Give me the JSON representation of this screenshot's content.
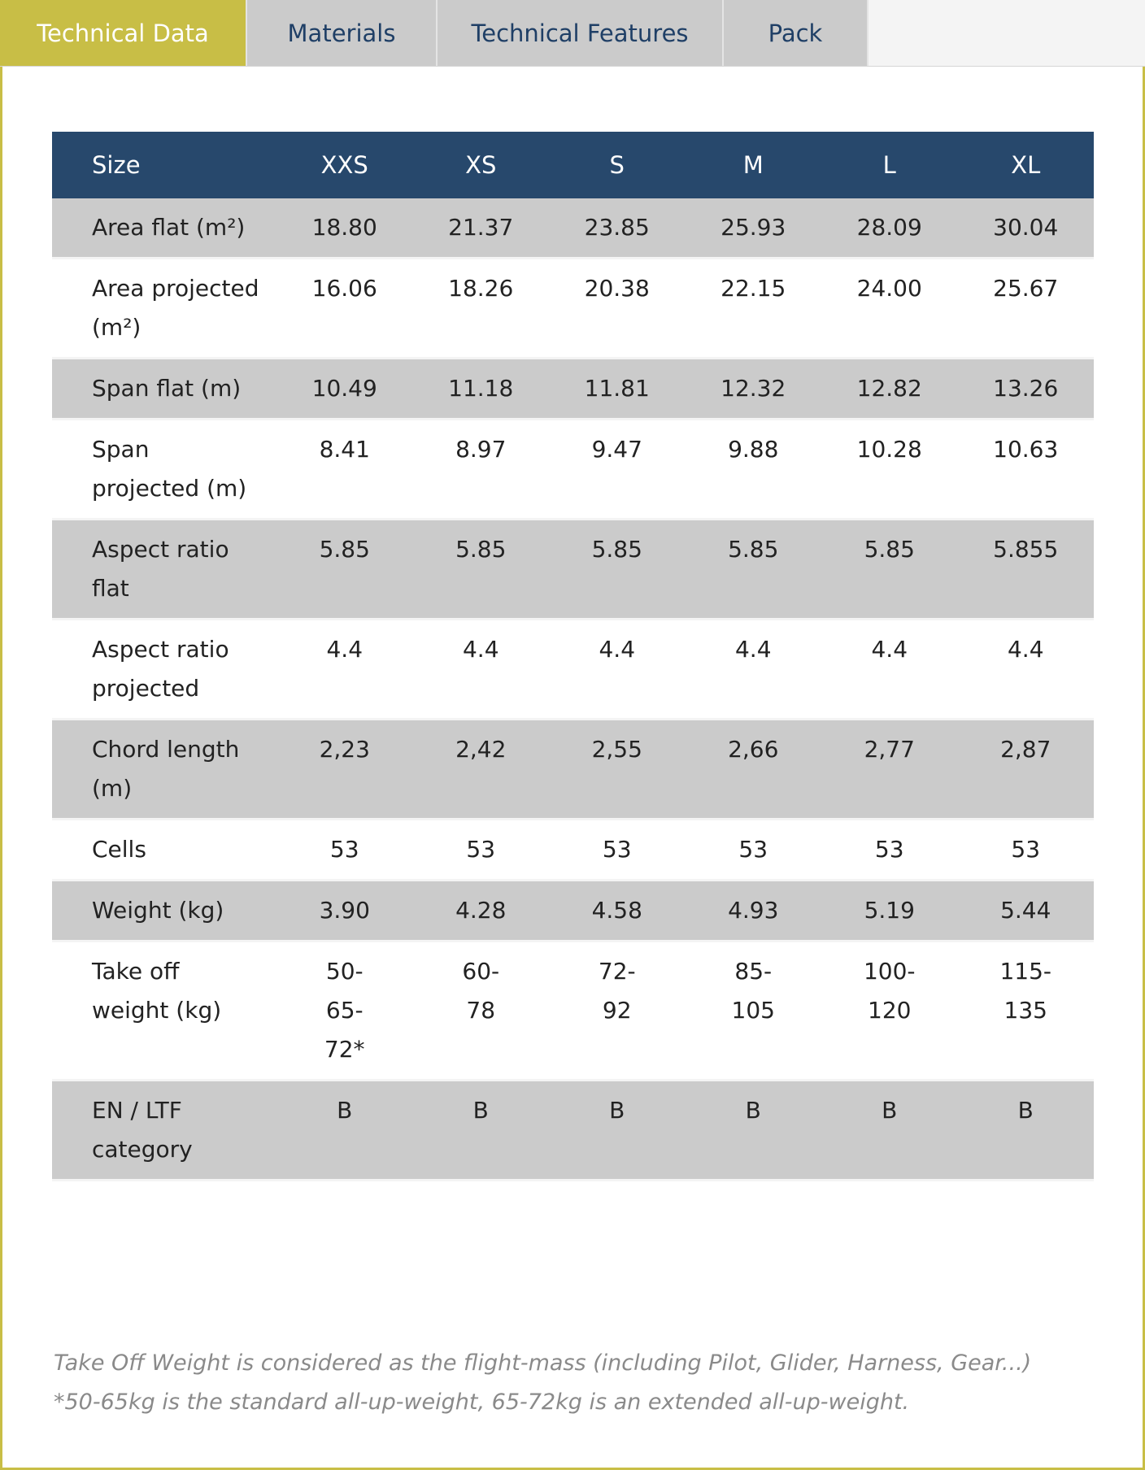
{
  "tabs": [
    {
      "label": "Technical Data",
      "active": true
    },
    {
      "label": "Materials",
      "active": false
    },
    {
      "label": "Technical Features",
      "active": false
    },
    {
      "label": "Pack",
      "active": false
    }
  ],
  "table": {
    "header": [
      "Size",
      "XXS",
      "XS",
      "S",
      "M",
      "L",
      "XL"
    ],
    "rows": [
      {
        "label": "Area flat (m²)",
        "values": [
          "18.80",
          "21.37",
          "23.85",
          "25.93",
          "28.09",
          "30.04"
        ]
      },
      {
        "label": "Area projected (m²)",
        "values": [
          "16.06",
          "18.26",
          "20.38",
          "22.15",
          "24.00",
          "25.67"
        ]
      },
      {
        "label": "Span flat (m)",
        "values": [
          "10.49",
          "11.18",
          "11.81",
          "12.32",
          "12.82",
          "13.26"
        ]
      },
      {
        "label": "Span projected (m)",
        "values": [
          "8.41",
          "8.97",
          "9.47",
          "9.88",
          "10.28",
          "10.63"
        ]
      },
      {
        "label": "Aspect ratio flat",
        "values": [
          "5.85",
          "5.85",
          "5.85",
          "5.85",
          "5.85",
          "5.855"
        ]
      },
      {
        "label": "Aspect ratio projected",
        "values": [
          "4.4",
          "4.4",
          "4.4",
          "4.4",
          "4.4",
          "4.4"
        ]
      },
      {
        "label": "Chord length (m)",
        "values": [
          "2,23",
          "2,42",
          "2,55",
          "2,66",
          "2,77",
          "2,87"
        ]
      },
      {
        "label": "Cells",
        "values": [
          "53",
          "53",
          "53",
          "53",
          "53",
          "53"
        ]
      },
      {
        "label": "Weight (kg)",
        "values": [
          "3.90",
          "4.28",
          "4.58",
          "4.93",
          "5.19",
          "5.44"
        ]
      },
      {
        "label": "Take off weight (kg)",
        "values": [
          "50-\n65-\n72*",
          "60-\n78",
          "72-\n92",
          "85-\n105",
          "100-\n120",
          "115-\n135"
        ]
      },
      {
        "label": "EN / LTF category",
        "values": [
          "B",
          "B",
          "B",
          "B",
          "B",
          "B"
        ]
      }
    ]
  },
  "notes": [
    "Take Off Weight is considered as the flight-mass (including Pilot, Glider, Harness, Gear...)",
    "*50-65kg is the standard all-up-weight, 65-72kg is an extended all-up-weight."
  ],
  "colors": {
    "accent": "#c8be46",
    "header_bg": "#27486c",
    "tab_text": "#1f3f66",
    "row_shade": "#cbcbcb"
  }
}
